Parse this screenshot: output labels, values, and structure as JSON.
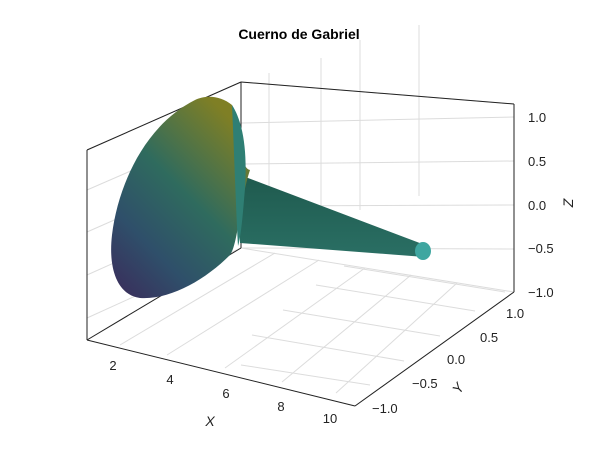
{
  "chart_data": {
    "type": "surface",
    "title": "Cuerno de Gabriel",
    "xlabel": "X",
    "ylabel": "Y",
    "zlabel": "Z",
    "x_ticks": [
      "2",
      "4",
      "6",
      "8",
      "10"
    ],
    "y_ticks": [
      "−1.0",
      "−0.5",
      "0.0",
      "0.5",
      "1.0"
    ],
    "z_ticks": [
      "−1.0",
      "−0.5",
      "0.0",
      "0.5",
      "1.0"
    ],
    "xlim": [
      1,
      10
    ],
    "ylim": [
      -1,
      1
    ],
    "zlim": [
      -1,
      1
    ],
    "surface": {
      "function": "revolution of r = 1/x about the x-axis",
      "x_range": [
        1,
        10
      ],
      "colormap": "viridis"
    },
    "grid": true,
    "colors": {
      "surface_dark": "#3b2a5a",
      "surface_mid": "#2f6b5e",
      "surface_light": "#7f7f25",
      "tube": "#1f5a4e",
      "tube_end": "#3fa6a0"
    }
  }
}
